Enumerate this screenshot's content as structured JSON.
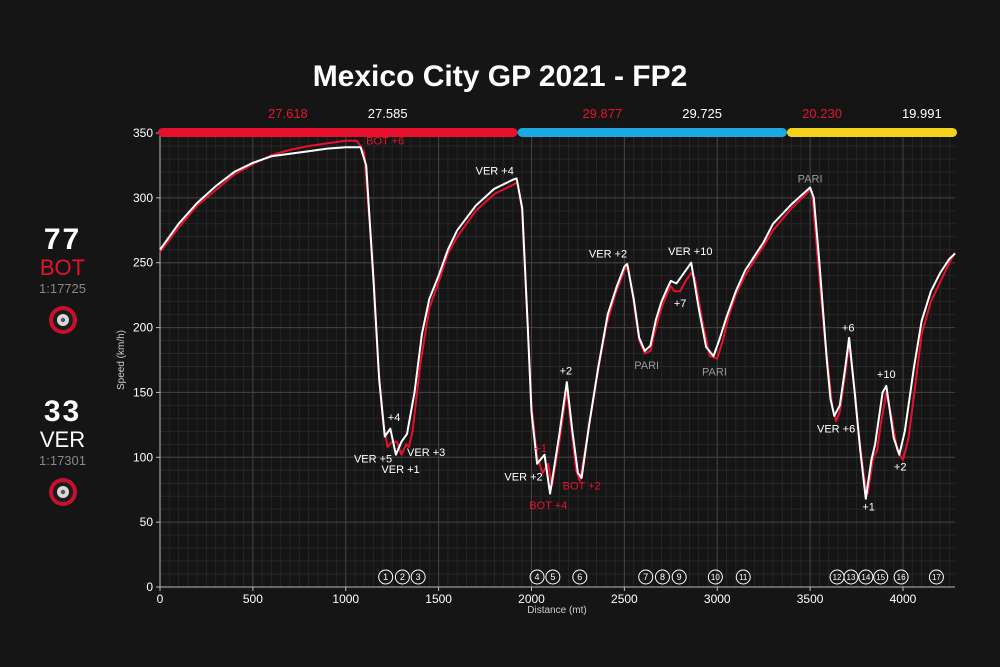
{
  "title": "Mexico City GP 2021 - FP2",
  "drivers": [
    {
      "number": "77",
      "code": "BOT",
      "lap_time": "1:17725",
      "color": "#e8112d",
      "tyre_icon": "tyre-icon"
    },
    {
      "number": "33",
      "code": "VER",
      "lap_time": "1:17301",
      "color": "#ffffff",
      "tyre_icon": "tyre-icon"
    }
  ],
  "sectors": [
    {
      "bot_time": "27.618",
      "ver_time": "27.585",
      "color": "#e8112d",
      "range": [
        0,
        1925
      ]
    },
    {
      "bot_time": "29.877",
      "ver_time": "29.725",
      "color": "#1aa9e0",
      "range": [
        1925,
        3375
      ]
    },
    {
      "bot_time": "20.230",
      "ver_time": "19.991",
      "color": "#f2d21b",
      "range": [
        3375,
        4280
      ]
    }
  ],
  "chart_data": {
    "type": "line",
    "xlabel": "Distance (mt)",
    "ylabel": "Speed (km/h)",
    "xlim": [
      0,
      4280
    ],
    "ylim": [
      0,
      350
    ],
    "x_ticks": [
      0,
      500,
      1000,
      1500,
      2000,
      2500,
      3000,
      3500,
      4000
    ],
    "y_ticks": [
      0,
      50,
      100,
      150,
      200,
      250,
      300,
      350
    ],
    "grid": true,
    "series": [
      {
        "name": "BOT",
        "color": "#e8112d",
        "points": [
          [
            0,
            258
          ],
          [
            100,
            277
          ],
          [
            200,
            294
          ],
          [
            300,
            306
          ],
          [
            400,
            318
          ],
          [
            500,
            326
          ],
          [
            600,
            333
          ],
          [
            700,
            337
          ],
          [
            800,
            340
          ],
          [
            900,
            342
          ],
          [
            1000,
            344
          ],
          [
            1060,
            344
          ],
          [
            1100,
            335
          ],
          [
            1150,
            240
          ],
          [
            1175,
            170
          ],
          [
            1200,
            128
          ],
          [
            1225,
            108
          ],
          [
            1250,
            112
          ],
          [
            1275,
            112
          ],
          [
            1300,
            102
          ],
          [
            1325,
            110
          ],
          [
            1340,
            108
          ],
          [
            1360,
            120
          ],
          [
            1400,
            170
          ],
          [
            1450,
            215
          ],
          [
            1500,
            235
          ],
          [
            1550,
            257
          ],
          [
            1600,
            270
          ],
          [
            1700,
            290
          ],
          [
            1800,
            303
          ],
          [
            1900,
            310
          ],
          [
            1925,
            312
          ],
          [
            1950,
            290
          ],
          [
            1980,
            200
          ],
          [
            2000,
            140
          ],
          [
            2030,
            100
          ],
          [
            2060,
            88
          ],
          [
            2090,
            95
          ],
          [
            2110,
            78
          ],
          [
            2150,
            112
          ],
          [
            2190,
            152
          ],
          [
            2220,
            115
          ],
          [
            2240,
            90
          ],
          [
            2260,
            82
          ],
          [
            2300,
            115
          ],
          [
            2350,
            160
          ],
          [
            2400,
            200
          ],
          [
            2450,
            225
          ],
          [
            2500,
            244
          ],
          [
            2520,
            247
          ],
          [
            2550,
            220
          ],
          [
            2580,
            190
          ],
          [
            2610,
            180
          ],
          [
            2640,
            182
          ],
          [
            2670,
            200
          ],
          [
            2700,
            215
          ],
          [
            2730,
            226
          ],
          [
            2750,
            232
          ],
          [
            2770,
            228
          ],
          [
            2800,
            228
          ],
          [
            2830,
            236
          ],
          [
            2860,
            242
          ],
          [
            2880,
            238
          ],
          [
            2920,
            205
          ],
          [
            2960,
            178
          ],
          [
            3000,
            176
          ],
          [
            3030,
            190
          ],
          [
            3060,
            208
          ],
          [
            3100,
            225
          ],
          [
            3150,
            240
          ],
          [
            3200,
            252
          ],
          [
            3250,
            263
          ],
          [
            3300,
            275
          ],
          [
            3400,
            292
          ],
          [
            3500,
            306
          ],
          [
            3510,
            305
          ],
          [
            3540,
            255
          ],
          [
            3580,
            190
          ],
          [
            3600,
            165
          ],
          [
            3620,
            138
          ],
          [
            3640,
            128
          ],
          [
            3660,
            135
          ],
          [
            3690,
            165
          ],
          [
            3710,
            188
          ],
          [
            3740,
            150
          ],
          [
            3760,
            120
          ],
          [
            3790,
            85
          ],
          [
            3810,
            72
          ],
          [
            3840,
            100
          ],
          [
            3860,
            105
          ],
          [
            3880,
            125
          ],
          [
            3910,
            150
          ],
          [
            3940,
            130
          ],
          [
            3970,
            105
          ],
          [
            4000,
            98
          ],
          [
            4030,
            115
          ],
          [
            4070,
            160
          ],
          [
            4100,
            195
          ],
          [
            4150,
            220
          ],
          [
            4200,
            235
          ],
          [
            4250,
            250
          ],
          [
            4280,
            258
          ]
        ]
      },
      {
        "name": "VER",
        "color": "#ffffff",
        "points": [
          [
            0,
            260
          ],
          [
            100,
            280
          ],
          [
            200,
            296
          ],
          [
            300,
            309
          ],
          [
            400,
            320
          ],
          [
            500,
            327
          ],
          [
            600,
            332
          ],
          [
            700,
            334
          ],
          [
            800,
            336
          ],
          [
            900,
            338
          ],
          [
            1000,
            339
          ],
          [
            1080,
            339
          ],
          [
            1110,
            325
          ],
          [
            1150,
            235
          ],
          [
            1180,
            160
          ],
          [
            1210,
            116
          ],
          [
            1240,
            122
          ],
          [
            1270,
            102
          ],
          [
            1300,
            112
          ],
          [
            1330,
            118
          ],
          [
            1370,
            150
          ],
          [
            1410,
            195
          ],
          [
            1450,
            222
          ],
          [
            1500,
            240
          ],
          [
            1550,
            260
          ],
          [
            1600,
            275
          ],
          [
            1700,
            294
          ],
          [
            1800,
            307
          ],
          [
            1900,
            314
          ],
          [
            1920,
            315
          ],
          [
            1950,
            292
          ],
          [
            1980,
            200
          ],
          [
            2000,
            135
          ],
          [
            2030,
            95
          ],
          [
            2070,
            102
          ],
          [
            2100,
            72
          ],
          [
            2150,
            118
          ],
          [
            2190,
            158
          ],
          [
            2220,
            120
          ],
          [
            2250,
            88
          ],
          [
            2270,
            84
          ],
          [
            2310,
            125
          ],
          [
            2360,
            170
          ],
          [
            2410,
            210
          ],
          [
            2460,
            232
          ],
          [
            2500,
            247
          ],
          [
            2515,
            249
          ],
          [
            2550,
            222
          ],
          [
            2580,
            192
          ],
          [
            2610,
            182
          ],
          [
            2640,
            186
          ],
          [
            2670,
            206
          ],
          [
            2700,
            220
          ],
          [
            2730,
            230
          ],
          [
            2750,
            236
          ],
          [
            2780,
            234
          ],
          [
            2810,
            240
          ],
          [
            2840,
            246
          ],
          [
            2860,
            250
          ],
          [
            2900,
            215
          ],
          [
            2940,
            185
          ],
          [
            2980,
            178
          ],
          [
            3010,
            190
          ],
          [
            3050,
            208
          ],
          [
            3100,
            228
          ],
          [
            3150,
            244
          ],
          [
            3200,
            255
          ],
          [
            3250,
            266
          ],
          [
            3300,
            280
          ],
          [
            3400,
            295
          ],
          [
            3500,
            308
          ],
          [
            3520,
            300
          ],
          [
            3550,
            250
          ],
          [
            3590,
            175
          ],
          [
            3610,
            145
          ],
          [
            3630,
            132
          ],
          [
            3660,
            140
          ],
          [
            3690,
            170
          ],
          [
            3710,
            192
          ],
          [
            3740,
            150
          ],
          [
            3770,
            105
          ],
          [
            3800,
            68
          ],
          [
            3830,
            98
          ],
          [
            3850,
            110
          ],
          [
            3890,
            150
          ],
          [
            3910,
            155
          ],
          [
            3950,
            115
          ],
          [
            3980,
            102
          ],
          [
            4010,
            120
          ],
          [
            4060,
            170
          ],
          [
            4100,
            205
          ],
          [
            4150,
            228
          ],
          [
            4200,
            242
          ],
          [
            4250,
            253
          ],
          [
            4280,
            257
          ]
        ]
      }
    ],
    "annotations": [
      {
        "text": "BOT +6",
        "x": 1110,
        "y": 341,
        "color": "#e8112d",
        "anchor": "start"
      },
      {
        "text": "VER +4",
        "x": 1905,
        "y": 318,
        "color": "#ffffff",
        "anchor": "end"
      },
      {
        "text": "+4",
        "x": 1260,
        "y": 128,
        "color": "#ffffff",
        "anchor": "middle"
      },
      {
        "text": "VER +5",
        "x": 1250,
        "y": 96,
        "color": "#ffffff",
        "anchor": "end"
      },
      {
        "text": "VER +1",
        "x": 1295,
        "y": 88,
        "color": "#ffffff",
        "anchor": "middle"
      },
      {
        "text": "VER +3",
        "x": 1330,
        "y": 101,
        "color": "#ffffff",
        "anchor": "start"
      },
      {
        "text": "+1",
        "x": 2050,
        "y": 104,
        "color": "#e8112d",
        "anchor": "middle"
      },
      {
        "text": "VER +2",
        "x": 2060,
        "y": 82,
        "color": "#ffffff",
        "anchor": "end"
      },
      {
        "text": "BOT +4",
        "x": 2090,
        "y": 60,
        "color": "#e8112d",
        "anchor": "middle"
      },
      {
        "text": "+2",
        "x": 2185,
        "y": 164,
        "color": "#ffffff",
        "anchor": "middle"
      },
      {
        "text": "BOT +2",
        "x": 2270,
        "y": 75,
        "color": "#e8112d",
        "anchor": "middle"
      },
      {
        "text": "VER +2",
        "x": 2515,
        "y": 254,
        "color": "#ffffff",
        "anchor": "end"
      },
      {
        "text": "PARI",
        "x": 2620,
        "y": 168,
        "color": "#9a9a9a",
        "anchor": "middle"
      },
      {
        "text": "+7",
        "x": 2800,
        "y": 216,
        "color": "#ffffff",
        "anchor": "middle"
      },
      {
        "text": "VER +10",
        "x": 2855,
        "y": 256,
        "color": "#ffffff",
        "anchor": "middle"
      },
      {
        "text": "PARI",
        "x": 2985,
        "y": 163,
        "color": "#9a9a9a",
        "anchor": "middle"
      },
      {
        "text": "PARI",
        "x": 3500,
        "y": 312,
        "color": "#9a9a9a",
        "anchor": "middle"
      },
      {
        "text": "+6",
        "x": 3705,
        "y": 197,
        "color": "#ffffff",
        "anchor": "middle"
      },
      {
        "text": "VER +6",
        "x": 3640,
        "y": 119,
        "color": "#ffffff",
        "anchor": "middle"
      },
      {
        "text": "+10",
        "x": 3910,
        "y": 161,
        "color": "#ffffff",
        "anchor": "middle"
      },
      {
        "text": "+2",
        "x": 3985,
        "y": 90,
        "color": "#ffffff",
        "anchor": "middle"
      },
      {
        "text": "+1",
        "x": 3815,
        "y": 59,
        "color": "#ffffff",
        "anchor": "middle"
      }
    ],
    "corners": [
      {
        "label": "1",
        "x": 1215
      },
      {
        "label": "2",
        "x": 1305
      },
      {
        "label": "3",
        "x": 1390
      },
      {
        "label": "4",
        "x": 2030
      },
      {
        "label": "5",
        "x": 2115
      },
      {
        "label": "6",
        "x": 2260
      },
      {
        "label": "7",
        "x": 2615
      },
      {
        "label": "8",
        "x": 2705
      },
      {
        "label": "9",
        "x": 2795
      },
      {
        "label": "10",
        "x": 2990
      },
      {
        "label": "11",
        "x": 3140
      },
      {
        "label": "12",
        "x": 3645
      },
      {
        "label": "13",
        "x": 3720
      },
      {
        "label": "14",
        "x": 3800
      },
      {
        "label": "15",
        "x": 3880
      },
      {
        "label": "16",
        "x": 3990
      },
      {
        "label": "17",
        "x": 4180
      }
    ]
  }
}
